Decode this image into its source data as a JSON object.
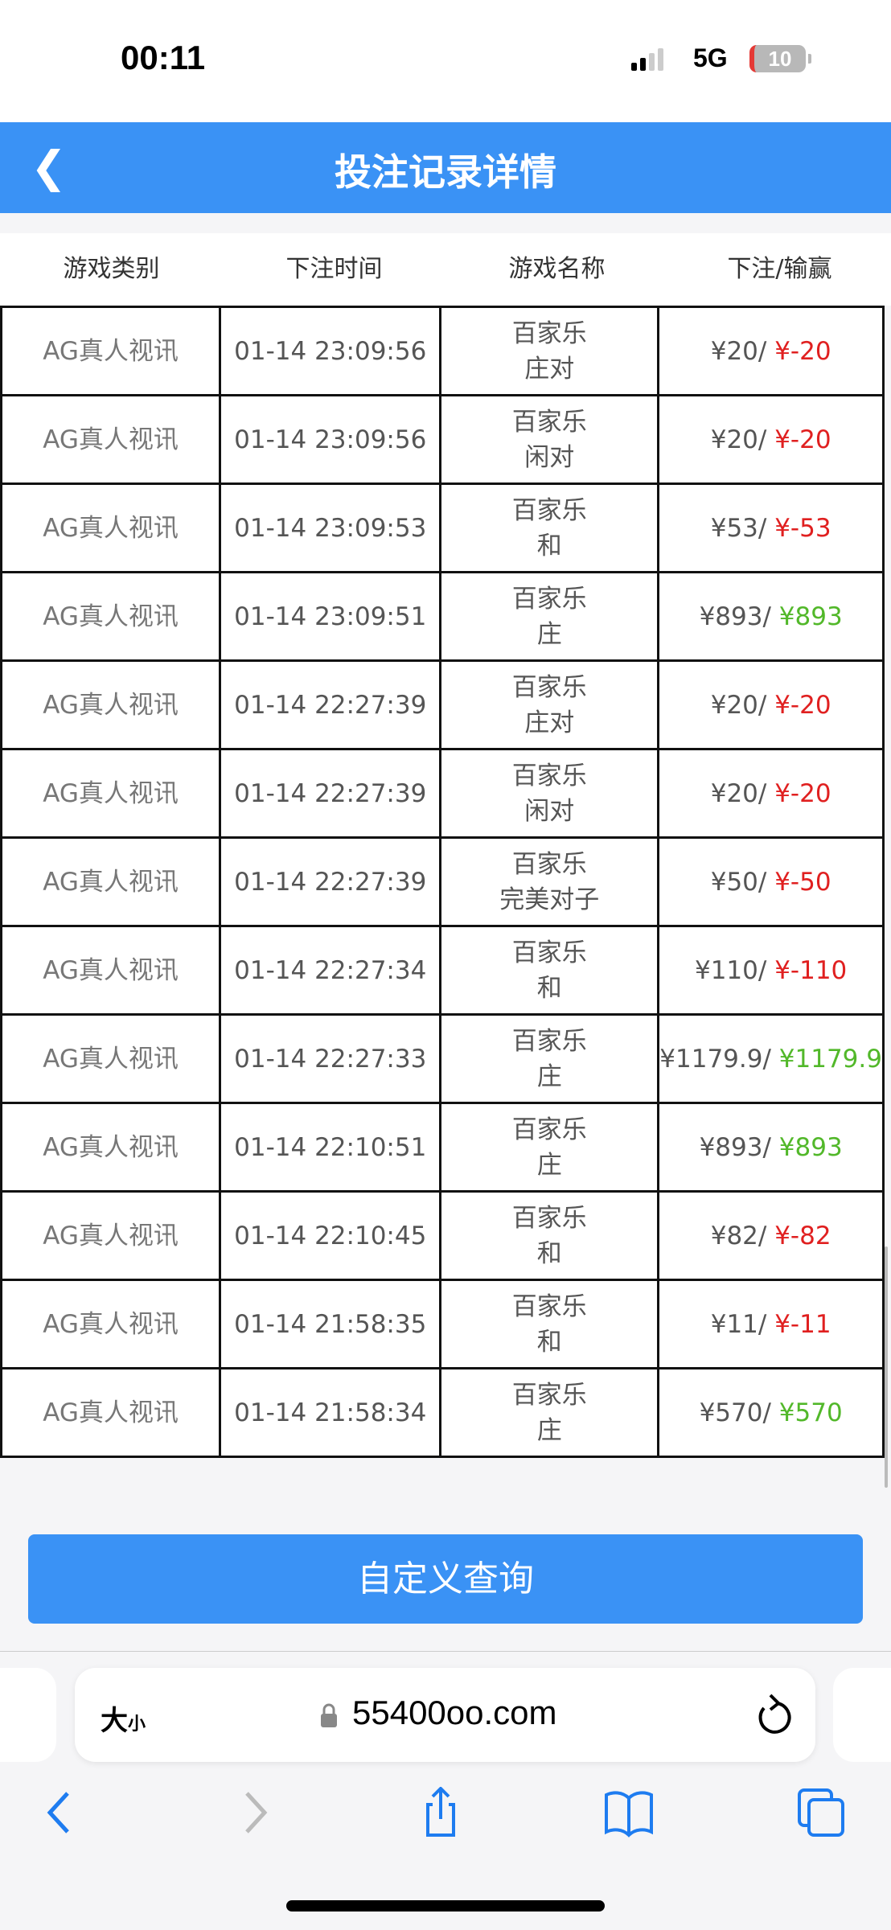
{
  "status": {
    "time": "00:11",
    "network": "5G",
    "battery": "10"
  },
  "header": {
    "title": "投注记录详情"
  },
  "columns": [
    "游戏类别",
    "下注时间",
    "游戏名称",
    "下注/输赢"
  ],
  "rows": [
    {
      "category": "AG真人视讯",
      "time": "01-14 23:09:56",
      "game": "百家乐",
      "bet_type": "庄对",
      "stake": "¥20/",
      "result": "¥-20",
      "win": false
    },
    {
      "category": "AG真人视讯",
      "time": "01-14 23:09:56",
      "game": "百家乐",
      "bet_type": "闲对",
      "stake": "¥20/",
      "result": "¥-20",
      "win": false
    },
    {
      "category": "AG真人视讯",
      "time": "01-14 23:09:53",
      "game": "百家乐",
      "bet_type": "和",
      "stake": "¥53/",
      "result": "¥-53",
      "win": false
    },
    {
      "category": "AG真人视讯",
      "time": "01-14 23:09:51",
      "game": "百家乐",
      "bet_type": "庄",
      "stake": "¥893/",
      "result": "¥893",
      "win": true
    },
    {
      "category": "AG真人视讯",
      "time": "01-14 22:27:39",
      "game": "百家乐",
      "bet_type": "庄对",
      "stake": "¥20/",
      "result": "¥-20",
      "win": false
    },
    {
      "category": "AG真人视讯",
      "time": "01-14 22:27:39",
      "game": "百家乐",
      "bet_type": "闲对",
      "stake": "¥20/",
      "result": "¥-20",
      "win": false
    },
    {
      "category": "AG真人视讯",
      "time": "01-14 22:27:39",
      "game": "百家乐",
      "bet_type": "完美对子",
      "stake": "¥50/",
      "result": "¥-50",
      "win": false
    },
    {
      "category": "AG真人视讯",
      "time": "01-14 22:27:34",
      "game": "百家乐",
      "bet_type": "和",
      "stake": "¥110/",
      "result": "¥-110",
      "win": false
    },
    {
      "category": "AG真人视讯",
      "time": "01-14 22:27:33",
      "game": "百家乐",
      "bet_type": "庄",
      "stake": "¥1179.9/",
      "result": "¥1179.9",
      "win": true
    },
    {
      "category": "AG真人视讯",
      "time": "01-14 22:10:51",
      "game": "百家乐",
      "bet_type": "庄",
      "stake": "¥893/",
      "result": "¥893",
      "win": true
    },
    {
      "category": "AG真人视讯",
      "time": "01-14 22:10:45",
      "game": "百家乐",
      "bet_type": "和",
      "stake": "¥82/",
      "result": "¥-82",
      "win": false
    },
    {
      "category": "AG真人视讯",
      "time": "01-14 21:58:35",
      "game": "百家乐",
      "bet_type": "和",
      "stake": "¥11/",
      "result": "¥-11",
      "win": false
    },
    {
      "category": "AG真人视讯",
      "time": "01-14 21:58:34",
      "game": "百家乐",
      "bet_type": "庄",
      "stake": "¥570/",
      "result": "¥570",
      "win": true
    }
  ],
  "query_button": "自定义查询",
  "browser": {
    "text_size": "大",
    "text_size_small": "小",
    "host": "55400oo.com"
  },
  "colors": {
    "accent": "#3a92f5",
    "loss": "#e02020",
    "win": "#52b82a"
  }
}
